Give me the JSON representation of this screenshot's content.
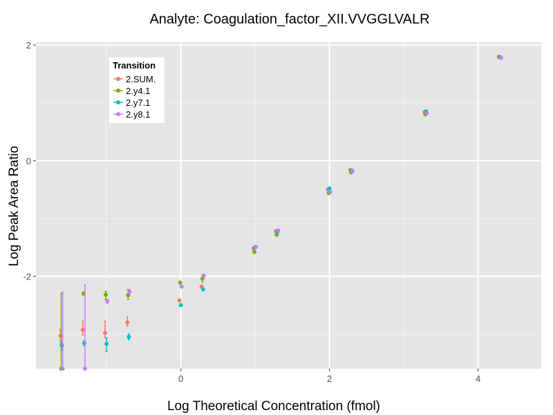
{
  "chart_data": {
    "type": "scatter",
    "title": "Analyte: Coagulation_factor_XII.VVGGLVALR",
    "xlabel": "Log Theoretical Concentration (fmol)",
    "ylabel": "Log Peak Area Ratio",
    "xlim": [
      -1.95,
      4.85
    ],
    "ylim": [
      -3.6,
      2.05
    ],
    "xticks": [
      {
        "value": 0,
        "label": "0"
      },
      {
        "value": 2,
        "label": "2"
      },
      {
        "value": 4,
        "label": "4"
      }
    ],
    "yticks": [
      {
        "value": -2,
        "label": "-2"
      },
      {
        "value": 0,
        "label": "0"
      },
      {
        "value": 2,
        "label": "2"
      }
    ],
    "grid": true,
    "legend": {
      "title": "Transition",
      "position": "top-left"
    },
    "series": [
      {
        "name": "2.SUM.",
        "color": "#F8766D",
        "points": [
          {
            "x": -1.62,
            "y": -3.03,
            "ymin": -3.2,
            "ymax": -2.92
          },
          {
            "x": -1.32,
            "y": -2.93,
            "ymin": -3.02,
            "ymax": -2.78
          },
          {
            "x": -1.02,
            "y": -2.98,
            "ymin": -3.06,
            "ymax": -2.78
          },
          {
            "x": -0.72,
            "y": -2.8,
            "ymin": -2.86,
            "ymax": -2.7
          },
          {
            "x": -0.02,
            "y": -2.42
          },
          {
            "x": 0.28,
            "y": -2.18
          },
          {
            "x": 0.98,
            "y": -1.52
          },
          {
            "x": 1.28,
            "y": -1.22
          },
          {
            "x": 1.98,
            "y": -0.5
          },
          {
            "x": 2.28,
            "y": -0.16
          },
          {
            "x": 3.28,
            "y": 0.84
          },
          {
            "x": 4.28,
            "y": 1.8
          }
        ]
      },
      {
        "name": "2.y4.1",
        "color": "#7CAE00",
        "points": [
          {
            "x": -1.61,
            "y": -3.6,
            "ymin": -3.6,
            "ymax": -2.3
          },
          {
            "x": -1.31,
            "y": -2.3,
            "ymin": -2.33,
            "ymax": -2.27
          },
          {
            "x": -1.01,
            "y": -2.32,
            "ymin": -2.4,
            "ymax": -2.26
          },
          {
            "x": -0.71,
            "y": -2.33,
            "ymin": -2.4,
            "ymax": -2.23
          },
          {
            "x": -0.01,
            "y": -2.11
          },
          {
            "x": 0.29,
            "y": -2.04,
            "ymin": -2.1,
            "ymax": -1.98
          },
          {
            "x": 0.99,
            "y": -1.58
          },
          {
            "x": 1.29,
            "y": -1.28
          },
          {
            "x": 1.99,
            "y": -0.56
          },
          {
            "x": 2.29,
            "y": -0.2
          },
          {
            "x": 3.29,
            "y": 0.8
          },
          {
            "x": 4.29,
            "y": 1.79
          }
        ]
      },
      {
        "name": "2.y7.1",
        "color": "#00BFC4",
        "points": [
          {
            "x": -1.6,
            "y": -3.2,
            "ymin": -3.28,
            "ymax": -3.15
          },
          {
            "x": -1.3,
            "y": -3.16,
            "ymin": -3.2,
            "ymax": -3.12
          },
          {
            "x": -1.0,
            "y": -3.17,
            "ymin": -3.3,
            "ymax": -3.07
          },
          {
            "x": -0.7,
            "y": -3.05,
            "ymin": -3.1,
            "ymax": -3.0
          },
          {
            "x": 0.0,
            "y": -2.5
          },
          {
            "x": 0.3,
            "y": -2.23
          },
          {
            "x": 1.0,
            "y": -1.5
          },
          {
            "x": 1.3,
            "y": -1.23
          },
          {
            "x": 2.0,
            "y": -0.48
          },
          {
            "x": 2.3,
            "y": -0.17
          },
          {
            "x": 3.3,
            "y": 0.85
          },
          {
            "x": 4.3,
            "y": 1.79
          }
        ]
      },
      {
        "name": "2.y8.1",
        "color": "#C77CFF",
        "points": [
          {
            "x": -1.59,
            "y": -3.6,
            "ymin": -3.6,
            "ymax": -2.28
          },
          {
            "x": -1.29,
            "y": -3.6,
            "ymin": -3.6,
            "ymax": -2.15
          },
          {
            "x": -0.99,
            "y": -2.43,
            "ymin": -2.47,
            "ymax": -2.4
          },
          {
            "x": -0.69,
            "y": -2.27,
            "ymin": -2.3,
            "ymax": -2.23
          },
          {
            "x": 0.01,
            "y": -2.18
          },
          {
            "x": 0.31,
            "y": -1.99
          },
          {
            "x": 1.01,
            "y": -1.49
          },
          {
            "x": 1.31,
            "y": -1.21
          },
          {
            "x": 2.01,
            "y": -0.54
          },
          {
            "x": 2.31,
            "y": -0.18
          },
          {
            "x": 3.31,
            "y": 0.82
          },
          {
            "x": 4.31,
            "y": 1.78
          }
        ]
      }
    ]
  }
}
